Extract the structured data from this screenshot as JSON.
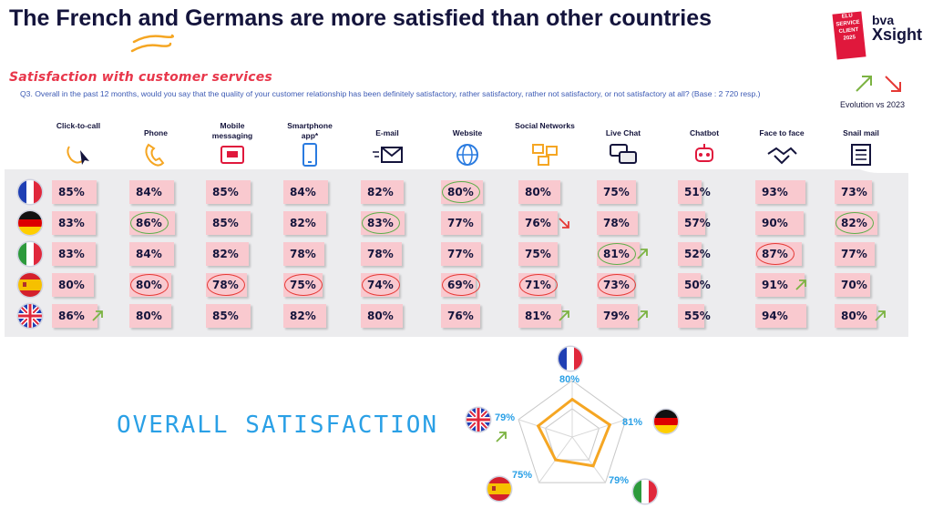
{
  "title": "The French and Germans are more satisfied than other countries",
  "subtitle": "Satisfaction with customer services",
  "question": "Q3. Overall in the past 12 months, would you say that the quality of your customer relationship has been definitely satisfactory, rather satisfactory, rather not satisfactory, or not satisfactory at all? (Base : 2 720 resp.)",
  "logos": {
    "service_client": [
      "ELU",
      "SERVICE",
      "CLIENT",
      "2025"
    ],
    "bva": "bva",
    "xsight": "Xsight"
  },
  "evolution_label": "Evolution vs 2023",
  "colors": {
    "cell": "#f9c9cf",
    "up": "#7cb342",
    "down": "#e53935",
    "accent_blue": "#2aa0e6",
    "radar_line": "#f5a623"
  },
  "chart_data": {
    "type": "table",
    "channels": [
      {
        "label": "Click-to-call",
        "icon": "click-to-call-icon"
      },
      {
        "label": "Phone",
        "icon": "phone-icon"
      },
      {
        "label": "Mobile messaging",
        "icon": "mobile-messaging-icon"
      },
      {
        "label": "Smartphone app*",
        "icon": "smartphone-icon"
      },
      {
        "label": "E-mail",
        "icon": "email-icon"
      },
      {
        "label": "Website",
        "icon": "globe-icon"
      },
      {
        "label": "Social Networks",
        "icon": "social-networks-icon"
      },
      {
        "label": "Live Chat",
        "icon": "live-chat-icon"
      },
      {
        "label": "Chatbot",
        "icon": "chatbot-icon"
      },
      {
        "label": "Face to face",
        "icon": "handshake-icon"
      },
      {
        "label": "Snail mail",
        "icon": "newspaper-icon"
      }
    ],
    "countries": [
      {
        "name": "France",
        "flag": "france-flag-icon",
        "values": [
          "85%",
          "84%",
          "85%",
          "84%",
          "82%",
          "80%",
          "80%",
          "75%",
          "51%",
          "93%",
          "73%"
        ],
        "fill": [
          85,
          84,
          85,
          84,
          82,
          80,
          80,
          75,
          51,
          93,
          73
        ]
      },
      {
        "name": "Germany",
        "flag": "germany-flag-icon",
        "values": [
          "83%",
          "86%",
          "85%",
          "82%",
          "83%",
          "77%",
          "76%",
          "78%",
          "57%",
          "90%",
          "82%"
        ],
        "fill": [
          83,
          86,
          85,
          82,
          83,
          77,
          76,
          78,
          57,
          90,
          82
        ]
      },
      {
        "name": "Italy",
        "flag": "italy-flag-icon",
        "values": [
          "83%",
          "84%",
          "82%",
          "78%",
          "78%",
          "77%",
          "75%",
          "81%",
          "52%",
          "87%",
          "77%"
        ],
        "fill": [
          83,
          84,
          82,
          78,
          78,
          77,
          75,
          81,
          52,
          87,
          77
        ]
      },
      {
        "name": "Spain",
        "flag": "spain-flag-icon",
        "values": [
          "80%",
          "80%",
          "78%",
          "75%",
          "74%",
          "69%",
          "71%",
          "73%",
          "50%",
          "91%",
          "70%"
        ],
        "fill": [
          80,
          80,
          78,
          75,
          74,
          69,
          71,
          73,
          50,
          91,
          70
        ]
      },
      {
        "name": "United Kingdom",
        "flag": "uk-flag-icon",
        "values": [
          "86%",
          "80%",
          "85%",
          "82%",
          "80%",
          "76%",
          "81%",
          "79%",
          "55%",
          "94%",
          "80%"
        ],
        "fill": [
          86,
          80,
          85,
          82,
          80,
          76,
          81,
          79,
          55,
          94,
          80
        ]
      }
    ],
    "highlights": [
      {
        "row": 0,
        "col": 5,
        "type": "best"
      },
      {
        "row": 1,
        "col": 1,
        "type": "best"
      },
      {
        "row": 1,
        "col": 4,
        "type": "best"
      },
      {
        "row": 1,
        "col": 10,
        "type": "best"
      },
      {
        "row": 2,
        "col": 7,
        "type": "best"
      },
      {
        "row": 2,
        "col": 9,
        "type": "worst"
      },
      {
        "row": 3,
        "col": 1,
        "type": "worst"
      },
      {
        "row": 3,
        "col": 2,
        "type": "worst"
      },
      {
        "row": 3,
        "col": 3,
        "type": "worst"
      },
      {
        "row": 3,
        "col": 4,
        "type": "worst"
      },
      {
        "row": 3,
        "col": 5,
        "type": "worst"
      },
      {
        "row": 3,
        "col": 6,
        "type": "worst"
      },
      {
        "row": 3,
        "col": 7,
        "type": "worst"
      }
    ],
    "arrows": [
      {
        "row": 1,
        "col": 6,
        "dir": "down"
      },
      {
        "row": 2,
        "col": 7,
        "dir": "up"
      },
      {
        "row": 3,
        "col": 9,
        "dir": "up"
      },
      {
        "row": 4,
        "col": 0,
        "dir": "up"
      },
      {
        "row": 4,
        "col": 6,
        "dir": "up"
      },
      {
        "row": 4,
        "col": 7,
        "dir": "up"
      },
      {
        "row": 4,
        "col": 10,
        "dir": "up"
      }
    ]
  },
  "overall": {
    "title": "OVERALL SATISFACTION",
    "radar": {
      "type": "radar",
      "axes": [
        "France",
        "Germany",
        "Italy",
        "Spain",
        "United Kingdom"
      ],
      "values": [
        80,
        81,
        79,
        75,
        79
      ],
      "labels": [
        "80%",
        "81%",
        "79%",
        "75%",
        "79%"
      ],
      "range": [
        60,
        90
      ],
      "uk_arrow": "up"
    }
  }
}
